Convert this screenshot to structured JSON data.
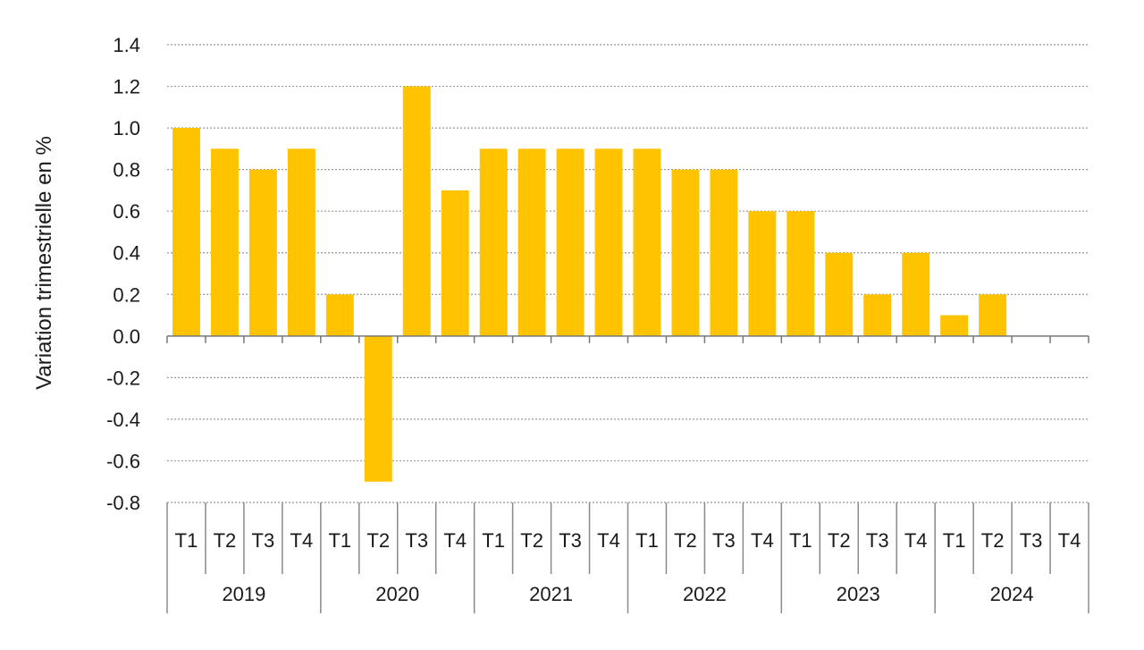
{
  "chart_data": {
    "type": "bar",
    "title": "",
    "xlabel": "",
    "ylabel": "Variation trimestrielle en %",
    "ylim": [
      -0.8,
      1.4
    ],
    "yticks": [
      1.4,
      1.2,
      1.0,
      0.8,
      0.6,
      0.4,
      0.2,
      0.0,
      -0.2,
      -0.4,
      -0.6,
      -0.8
    ],
    "ytick_labels": [
      "1.4",
      "1.2",
      "1.0",
      "0.8",
      "0.6",
      "0.4",
      "0.2",
      "0.0",
      "-0.2",
      "-0.4",
      "-0.6",
      "-0.8"
    ],
    "grid": true,
    "bar_color": "#FFC300",
    "groups": [
      {
        "label": "2019",
        "categories": [
          "T1",
          "T2",
          "T3",
          "T4"
        ]
      },
      {
        "label": "2020",
        "categories": [
          "T1",
          "T2",
          "T3",
          "T4"
        ]
      },
      {
        "label": "2021",
        "categories": [
          "T1",
          "T2",
          "T3",
          "T4"
        ]
      },
      {
        "label": "2022",
        "categories": [
          "T1",
          "T2",
          "T3",
          "T4"
        ]
      },
      {
        "label": "2023",
        "categories": [
          "T1",
          "T2",
          "T3",
          "T4"
        ]
      },
      {
        "label": "2024",
        "categories": [
          "T1",
          "T2",
          "T3",
          "T4"
        ]
      }
    ],
    "values": [
      1.0,
      0.9,
      0.8,
      0.9,
      0.2,
      -0.7,
      1.2,
      0.7,
      0.9,
      0.9,
      0.9,
      0.9,
      0.9,
      0.8,
      0.8,
      0.6,
      0.6,
      0.4,
      0.2,
      0.4,
      0.1,
      0.2,
      null,
      null
    ]
  }
}
